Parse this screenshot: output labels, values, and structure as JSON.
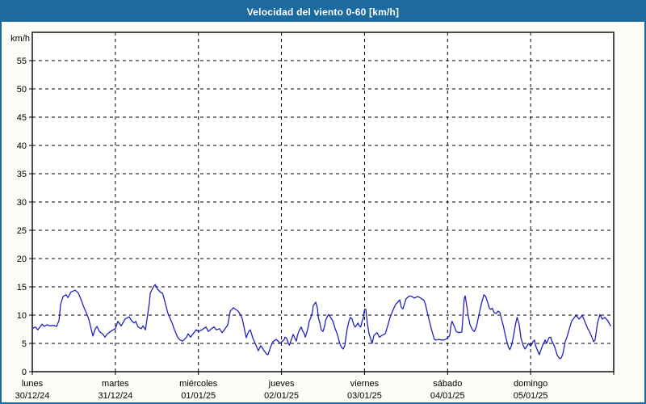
{
  "window": {
    "title": "Velocidad del viento 0-60 [km/h]"
  },
  "colors": {
    "titlebar_bg": "#1d6b9e",
    "titlebar_text": "#ffffff",
    "border": "#1d6b9e",
    "window_bg": "#fbfcf7",
    "plot_bg": "#ffffff",
    "line": "#2222bb",
    "grid": "#000000",
    "axis_text": "#000000"
  },
  "chart_data": {
    "type": "line",
    "title": "Velocidad del viento 0-60 [km/h]",
    "ylabel_unit": "km/h",
    "ylim": [
      0,
      60
    ],
    "ytick_step": 5,
    "ytick_values": [
      0,
      5,
      10,
      15,
      20,
      25,
      30,
      35,
      40,
      45,
      50,
      55
    ],
    "grid": true,
    "legend": "none",
    "x_unit": "hours_since_monday_00h",
    "xlim": [
      0,
      168
    ],
    "xticks": [
      {
        "hour": 0,
        "day": "lunes",
        "date": "30/12/24"
      },
      {
        "hour": 24,
        "day": "martes",
        "date": "31/12/24"
      },
      {
        "hour": 48,
        "day": "miércoles",
        "date": "01/01/25"
      },
      {
        "hour": 72,
        "day": "jueves",
        "date": "02/01/25"
      },
      {
        "hour": 96,
        "day": "viernes",
        "date": "03/01/25"
      },
      {
        "hour": 120,
        "day": "sábado",
        "date": "04/01/25"
      },
      {
        "hour": 144,
        "day": "domingo",
        "date": "05/01/25"
      }
    ],
    "series": [
      {
        "name": "Velocidad del viento",
        "points": [
          [
            0.0,
            7.8
          ],
          [
            0.2,
            7.7
          ],
          [
            0.9,
            7.9
          ],
          [
            1.6,
            7.4
          ],
          [
            2.8,
            8.4
          ],
          [
            3.5,
            8.0
          ],
          [
            4.2,
            8.3
          ],
          [
            5.1,
            8.1
          ],
          [
            6.1,
            8.2
          ],
          [
            7.0,
            8.0
          ],
          [
            7.7,
            9.0
          ],
          [
            8.2,
            11.9
          ],
          [
            8.9,
            13.3
          ],
          [
            9.8,
            13.6
          ],
          [
            10.3,
            13.1
          ],
          [
            11.2,
            14.1
          ],
          [
            12.4,
            14.4
          ],
          [
            13.3,
            13.9
          ],
          [
            14.0,
            12.9
          ],
          [
            14.7,
            11.7
          ],
          [
            15.6,
            10.4
          ],
          [
            16.3,
            9.3
          ],
          [
            16.8,
            8.1
          ],
          [
            17.5,
            6.3
          ],
          [
            18.2,
            7.6
          ],
          [
            18.7,
            8.0
          ],
          [
            19.4,
            7.1
          ],
          [
            20.3,
            6.7
          ],
          [
            21.0,
            6.1
          ],
          [
            21.7,
            6.7
          ],
          [
            22.6,
            7.1
          ],
          [
            23.3,
            7.4
          ],
          [
            24.0,
            7.6
          ],
          [
            24.7,
            8.9
          ],
          [
            25.7,
            8.1
          ],
          [
            26.8,
            9.3
          ],
          [
            28.0,
            9.7
          ],
          [
            28.7,
            9.0
          ],
          [
            29.4,
            8.6
          ],
          [
            29.9,
            8.9
          ],
          [
            30.6,
            7.9
          ],
          [
            31.5,
            7.6
          ],
          [
            32.0,
            8.1
          ],
          [
            32.7,
            7.4
          ],
          [
            33.4,
            10.3
          ],
          [
            33.8,
            12.1
          ],
          [
            34.1,
            13.9
          ],
          [
            35.0,
            15.0
          ],
          [
            35.5,
            15.4
          ],
          [
            36.2,
            14.6
          ],
          [
            37.1,
            14.0
          ],
          [
            37.6,
            13.9
          ],
          [
            38.0,
            13.1
          ],
          [
            38.5,
            11.9
          ],
          [
            39.2,
            10.3
          ],
          [
            39.7,
            9.6
          ],
          [
            40.4,
            8.6
          ],
          [
            41.1,
            7.4
          ],
          [
            42.0,
            6.1
          ],
          [
            42.7,
            5.6
          ],
          [
            43.4,
            5.4
          ],
          [
            44.6,
            6.1
          ],
          [
            45.0,
            6.7
          ],
          [
            45.7,
            6.1
          ],
          [
            46.7,
            6.9
          ],
          [
            47.4,
            7.4
          ],
          [
            48.1,
            7.1
          ],
          [
            49.0,
            7.4
          ],
          [
            50.2,
            7.9
          ],
          [
            50.9,
            7.1
          ],
          [
            51.8,
            7.6
          ],
          [
            52.5,
            7.9
          ],
          [
            53.2,
            7.4
          ],
          [
            54.1,
            7.6
          ],
          [
            54.8,
            6.9
          ],
          [
            55.5,
            7.4
          ],
          [
            56.5,
            8.3
          ],
          [
            57.2,
            10.7
          ],
          [
            58.1,
            11.3
          ],
          [
            58.8,
            11.0
          ],
          [
            59.5,
            10.7
          ],
          [
            60.2,
            10.0
          ],
          [
            60.7,
            9.3
          ],
          [
            61.1,
            8.1
          ],
          [
            61.8,
            6.0
          ],
          [
            62.5,
            7.1
          ],
          [
            63.0,
            7.4
          ],
          [
            63.7,
            6.0
          ],
          [
            64.2,
            5.3
          ],
          [
            64.9,
            4.3
          ],
          [
            65.3,
            3.7
          ],
          [
            66.0,
            4.6
          ],
          [
            67.0,
            3.7
          ],
          [
            67.7,
            3.1
          ],
          [
            68.1,
            3.0
          ],
          [
            68.8,
            4.3
          ],
          [
            69.5,
            5.3
          ],
          [
            70.5,
            5.7
          ],
          [
            71.2,
            5.3
          ],
          [
            71.6,
            5.0
          ],
          [
            72.1,
            5.3
          ],
          [
            72.8,
            5.7
          ],
          [
            73.0,
            6.1
          ],
          [
            73.5,
            5.9
          ],
          [
            74.0,
            5.0
          ],
          [
            74.3,
            4.7
          ],
          [
            74.7,
            5.4
          ],
          [
            75.1,
            6.1
          ],
          [
            75.4,
            6.6
          ],
          [
            75.8,
            6.0
          ],
          [
            76.3,
            5.4
          ],
          [
            76.6,
            6.4
          ],
          [
            77.0,
            7.1
          ],
          [
            77.4,
            7.6
          ],
          [
            77.7,
            7.9
          ],
          [
            78.2,
            7.1
          ],
          [
            78.6,
            6.7
          ],
          [
            78.9,
            6.1
          ],
          [
            79.3,
            6.9
          ],
          [
            79.8,
            8.1
          ],
          [
            80.0,
            8.9
          ],
          [
            80.5,
            9.6
          ],
          [
            81.0,
            10.7
          ],
          [
            81.2,
            11.7
          ],
          [
            81.9,
            12.3
          ],
          [
            82.4,
            11.2
          ],
          [
            82.6,
            9.7
          ],
          [
            83.1,
            8.6
          ],
          [
            83.5,
            7.4
          ],
          [
            84.0,
            7.1
          ],
          [
            84.5,
            8.1
          ],
          [
            84.7,
            9.0
          ],
          [
            85.2,
            9.7
          ],
          [
            85.6,
            10.1
          ],
          [
            86.1,
            9.7
          ],
          [
            86.8,
            9.0
          ],
          [
            87.2,
            8.3
          ],
          [
            87.5,
            7.6
          ],
          [
            88.0,
            6.9
          ],
          [
            88.4,
            6.0
          ],
          [
            88.7,
            5.3
          ],
          [
            89.1,
            4.6
          ],
          [
            89.4,
            4.3
          ],
          [
            89.8,
            4.0
          ],
          [
            90.3,
            4.6
          ],
          [
            90.6,
            6.0
          ],
          [
            91.0,
            7.6
          ],
          [
            91.5,
            8.9
          ],
          [
            91.9,
            9.6
          ],
          [
            92.4,
            9.3
          ],
          [
            92.9,
            8.3
          ],
          [
            93.3,
            7.9
          ],
          [
            93.8,
            8.3
          ],
          [
            94.1,
            8.6
          ],
          [
            94.5,
            8.1
          ],
          [
            94.9,
            7.9
          ],
          [
            95.3,
            8.9
          ],
          [
            95.7,
            9.6
          ],
          [
            95.9,
            10.7
          ],
          [
            96.1,
            11.1
          ],
          [
            96.4,
            11.0
          ],
          [
            96.8,
            8.6
          ],
          [
            97.3,
            6.7
          ],
          [
            98.2,
            5.0
          ],
          [
            98.7,
            6.4
          ],
          [
            99.6,
            6.9
          ],
          [
            100.3,
            6.1
          ],
          [
            101.0,
            6.4
          ],
          [
            102.0,
            6.7
          ],
          [
            102.7,
            8.1
          ],
          [
            103.4,
            9.6
          ],
          [
            104.3,
            11.0
          ],
          [
            105.0,
            11.9
          ],
          [
            106.2,
            12.7
          ],
          [
            106.6,
            11.4
          ],
          [
            107.1,
            11.1
          ],
          [
            108.0,
            12.9
          ],
          [
            109.0,
            13.4
          ],
          [
            109.7,
            13.3
          ],
          [
            110.4,
            13.0
          ],
          [
            111.3,
            13.3
          ],
          [
            112.0,
            13.1
          ],
          [
            112.5,
            12.9
          ],
          [
            113.2,
            12.6
          ],
          [
            113.6,
            11.9
          ],
          [
            114.3,
            10.0
          ],
          [
            115.0,
            8.3
          ],
          [
            115.5,
            7.1
          ],
          [
            116.2,
            5.7
          ],
          [
            116.7,
            5.6
          ],
          [
            117.4,
            5.7
          ],
          [
            118.3,
            5.6
          ],
          [
            119.0,
            5.6
          ],
          [
            119.9,
            5.9
          ],
          [
            120.6,
            6.4
          ],
          [
            121.0,
            8.3
          ],
          [
            121.3,
            8.9
          ],
          [
            122.0,
            7.9
          ],
          [
            122.5,
            7.1
          ],
          [
            123.2,
            6.9
          ],
          [
            124.1,
            7.0
          ],
          [
            124.4,
            9.3
          ],
          [
            124.8,
            12.9
          ],
          [
            125.1,
            13.4
          ],
          [
            125.6,
            11.4
          ],
          [
            126.0,
            9.7
          ],
          [
            126.5,
            8.3
          ],
          [
            127.2,
            7.4
          ],
          [
            127.7,
            7.1
          ],
          [
            128.3,
            7.9
          ],
          [
            128.8,
            9.3
          ],
          [
            129.3,
            10.7
          ],
          [
            129.8,
            12.1
          ],
          [
            130.5,
            13.6
          ],
          [
            131.0,
            13.3
          ],
          [
            131.5,
            12.4
          ],
          [
            132.1,
            11.2
          ],
          [
            132.5,
            11.0
          ],
          [
            132.9,
            11.2
          ],
          [
            133.5,
            10.4
          ],
          [
            134.0,
            10.3
          ],
          [
            134.6,
            10.7
          ],
          [
            135.1,
            10.5
          ],
          [
            135.6,
            9.3
          ],
          [
            136.1,
            8.1
          ],
          [
            136.6,
            6.7
          ],
          [
            137.1,
            5.4
          ],
          [
            137.6,
            4.3
          ],
          [
            138.0,
            3.9
          ],
          [
            138.5,
            4.7
          ],
          [
            139.0,
            6.1
          ],
          [
            139.6,
            8.3
          ],
          [
            140.1,
            9.6
          ],
          [
            140.7,
            8.3
          ],
          [
            141.2,
            6.0
          ],
          [
            141.8,
            4.7
          ],
          [
            142.4,
            4.0
          ],
          [
            142.9,
            4.5
          ],
          [
            143.4,
            5.0
          ],
          [
            144.0,
            4.5
          ],
          [
            144.7,
            5.3
          ],
          [
            145.1,
            5.6
          ],
          [
            145.4,
            4.7
          ],
          [
            145.8,
            4.0
          ],
          [
            146.5,
            3.0
          ],
          [
            147.0,
            3.9
          ],
          [
            147.5,
            4.7
          ],
          [
            148.2,
            5.6
          ],
          [
            148.6,
            5.0
          ],
          [
            149.3,
            6.0
          ],
          [
            149.8,
            6.1
          ],
          [
            150.0,
            5.6
          ],
          [
            150.5,
            5.0
          ],
          [
            151.0,
            4.3
          ],
          [
            151.7,
            2.9
          ],
          [
            152.4,
            2.3
          ],
          [
            152.8,
            2.4
          ],
          [
            153.3,
            3.1
          ],
          [
            154.0,
            5.3
          ],
          [
            154.5,
            6.1
          ],
          [
            155.2,
            7.6
          ],
          [
            155.9,
            9.0
          ],
          [
            156.3,
            9.3
          ],
          [
            157.0,
            9.9
          ],
          [
            157.5,
            9.7
          ],
          [
            158.0,
            9.3
          ],
          [
            158.9,
            9.9
          ],
          [
            159.4,
            9.3
          ],
          [
            159.8,
            8.6
          ],
          [
            160.5,
            7.6
          ],
          [
            161.0,
            7.1
          ],
          [
            161.5,
            6.4
          ],
          [
            162.2,
            5.3
          ],
          [
            162.6,
            5.6
          ],
          [
            162.9,
            6.7
          ],
          [
            163.3,
            8.6
          ],
          [
            164.0,
            10.1
          ],
          [
            164.7,
            9.3
          ],
          [
            165.4,
            9.6
          ],
          [
            165.9,
            9.3
          ],
          [
            166.4,
            8.9
          ],
          [
            167.1,
            8.1
          ]
        ]
      }
    ]
  }
}
